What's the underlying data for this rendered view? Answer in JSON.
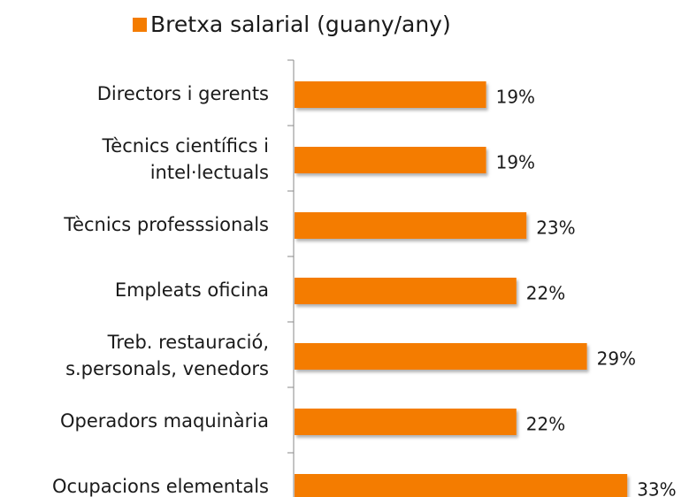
{
  "chart_data": {
    "type": "bar",
    "orientation": "horizontal",
    "categories": [
      "Directors i gerents",
      "Tècnics científics i\nintel·lectuals",
      "Tècnics professsionals ",
      "Empleats oficina",
      "Treb. restauració,\ns.personals, venedors",
      "Operadors maquinària",
      "Ocupacions elementals"
    ],
    "series": [
      {
        "name": "Bretxa salarial (guany/any)",
        "color": "#f47c00",
        "values": [
          19,
          19,
          23,
          22,
          29,
          22,
          33
        ],
        "value_labels": [
          "19%",
          "19%",
          "23%",
          "22%",
          "29%",
          "22%",
          "33%"
        ]
      }
    ],
    "legend": "top"
  }
}
